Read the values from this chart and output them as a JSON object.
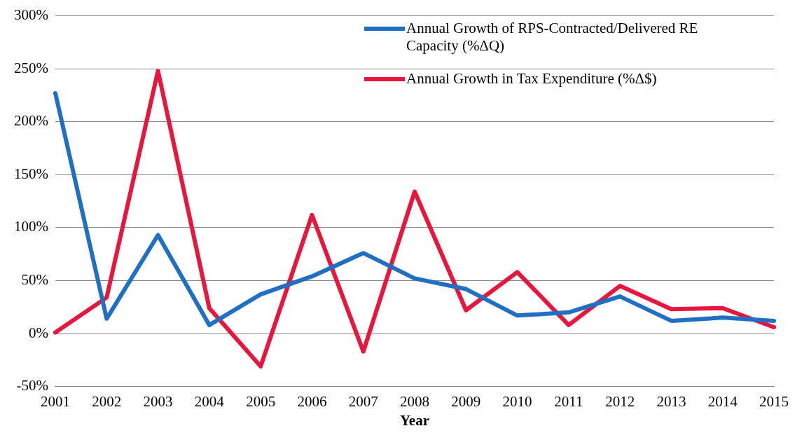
{
  "chart_data": {
    "type": "line",
    "xlabel": "Year",
    "categories": [
      "2001",
      "2002",
      "2003",
      "2004",
      "2005",
      "2006",
      "2007",
      "2008",
      "2009",
      "2010",
      "2011",
      "2012",
      "2013",
      "2014",
      "2015"
    ],
    "series": [
      {
        "name": "Annual Growth of RPS-Contracted/Delivered RE Capacity (%ΔQ)",
        "color": "#1f6fc5",
        "values": [
          227,
          14,
          93,
          8,
          37,
          54,
          76,
          52,
          42,
          17,
          20,
          35,
          12,
          15,
          12
        ]
      },
      {
        "name": "Annual Growth in Tax Expenditure (%Δ$)",
        "color": "#e8163c",
        "values": [
          1,
          34,
          248,
          24,
          -31,
          112,
          -17,
          134,
          22,
          58,
          8,
          45,
          23,
          24,
          6
        ]
      }
    ],
    "ylim": [
      -50,
      300
    ],
    "yticks": [
      {
        "value": -50,
        "label": "-50%"
      },
      {
        "value": 0,
        "label": "0%"
      },
      {
        "value": 50,
        "label": "50%"
      },
      {
        "value": 100,
        "label": "100%"
      },
      {
        "value": 150,
        "label": "150%"
      },
      {
        "value": 200,
        "label": "200%"
      },
      {
        "value": 250,
        "label": "250%"
      },
      {
        "value": 300,
        "label": "300%"
      }
    ],
    "grid": "y",
    "legend": "top right",
    "marker": "none",
    "line_style": "solid"
  }
}
